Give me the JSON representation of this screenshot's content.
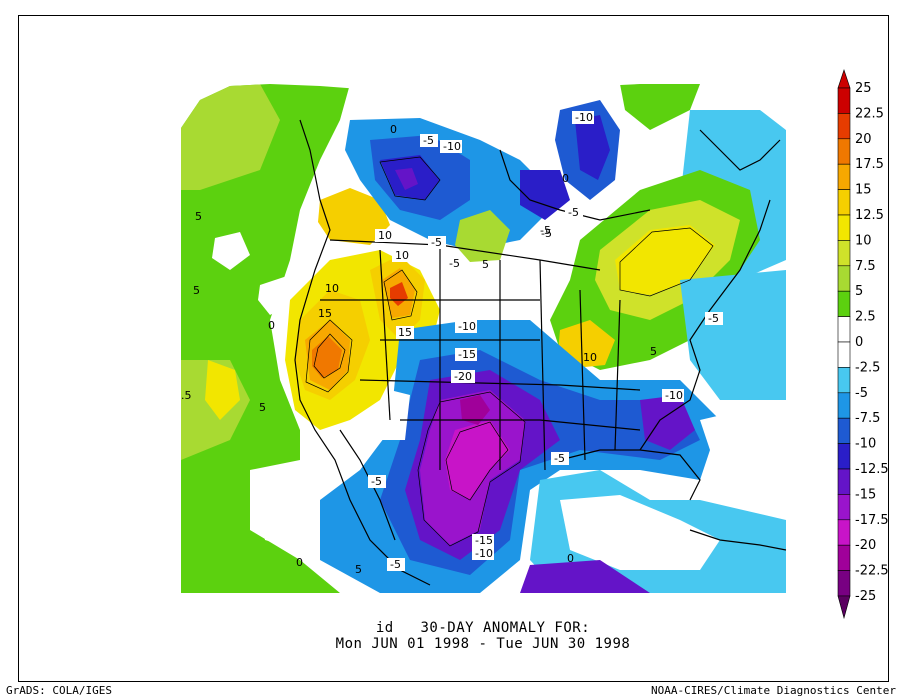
{
  "plot": {
    "title_line1": "id   30-DAY ANOMALY FOR:",
    "title_line2": "Mon JUN 01 1998 - Tue JUN 30 1998"
  },
  "footer": {
    "left": "GrADS: COLA/IGES",
    "right": "NOAA-CIRES/Climate Diagnostics Center"
  },
  "colorbar": {
    "labels": [
      "25",
      "22.5",
      "20",
      "17.5",
      "15",
      "12.5",
      "10",
      "7.5",
      "5",
      "2.5",
      "0",
      "-2.5",
      "-5",
      "-7.5",
      "-10",
      "-12.5",
      "-15",
      "-17.5",
      "-20",
      "-22.5",
      "-25"
    ],
    "colors": [
      "#cc0000",
      "#e63c00",
      "#f07800",
      "#f7a800",
      "#f5cf00",
      "#f2e600",
      "#cfe22a",
      "#a8da32",
      "#5cd10f",
      "#ffffff",
      "#ffffff",
      "#48c8f0",
      "#1e96e6",
      "#1e5ad2",
      "#2a1ec8",
      "#6414c8",
      "#9a14cc",
      "#c814c8",
      "#a0009a",
      "#780082"
    ]
  },
  "contour_labels": [
    "-10",
    "-10",
    "-5",
    "-5",
    "-5",
    "-5",
    "-5",
    "-10",
    "-15",
    "-20",
    "-10",
    "-5",
    "-15",
    "-10",
    "-5",
    "0",
    "0",
    "5",
    "5",
    "5",
    "5",
    "5",
    "10",
    "10",
    "10",
    "10",
    "15",
    "15",
    ".5",
    "-5",
    "-5",
    "-5",
    "5",
    "0",
    "0",
    "0"
  ]
}
